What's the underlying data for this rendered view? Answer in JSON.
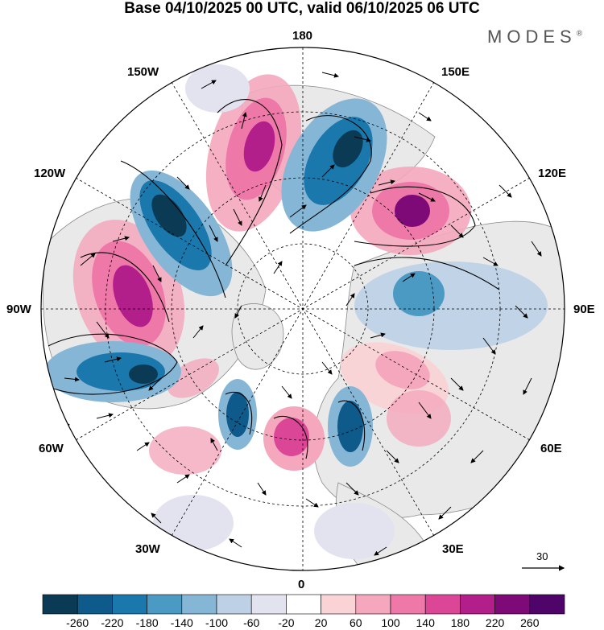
{
  "title": "Base 04/10/2025 00 UTC, valid 06/10/2025 06 UTC",
  "brand": {
    "name": "MODES",
    "mark": "®"
  },
  "longitude_labels": {
    "top": "180",
    "bottom": "0",
    "left": "90W",
    "right": "90E",
    "upper_left_1": "150W",
    "upper_left_2": "120W",
    "upper_right_1": "150E",
    "upper_right_2": "120E",
    "lower_left_1": "60W",
    "lower_left_2": "30W",
    "lower_right_1": "60E",
    "lower_right_2": "30E"
  },
  "reference_vector": {
    "value": "30",
    "icon": "arrow-right-icon"
  },
  "colorbar": {
    "ticks": [
      "-260",
      "-220",
      "-180",
      "-140",
      "-100",
      "-60",
      "-20",
      "20",
      "60",
      "100",
      "140",
      "180",
      "220",
      "260"
    ],
    "colors": [
      "#0b3a55",
      "#0e5a8a",
      "#1a78ad",
      "#4a9ac4",
      "#86b6d6",
      "#bdd0e6",
      "#e3e3f0",
      "#ffffff",
      "#f9d3d6",
      "#f4a7bd",
      "#ee78a8",
      "#dc4697",
      "#b21e8a",
      "#7e0a78",
      "#4e0468"
    ]
  },
  "legend_colors": {
    "land": "#e8e8e8",
    "ocean": "#ffffff",
    "coast": "#777777"
  }
}
